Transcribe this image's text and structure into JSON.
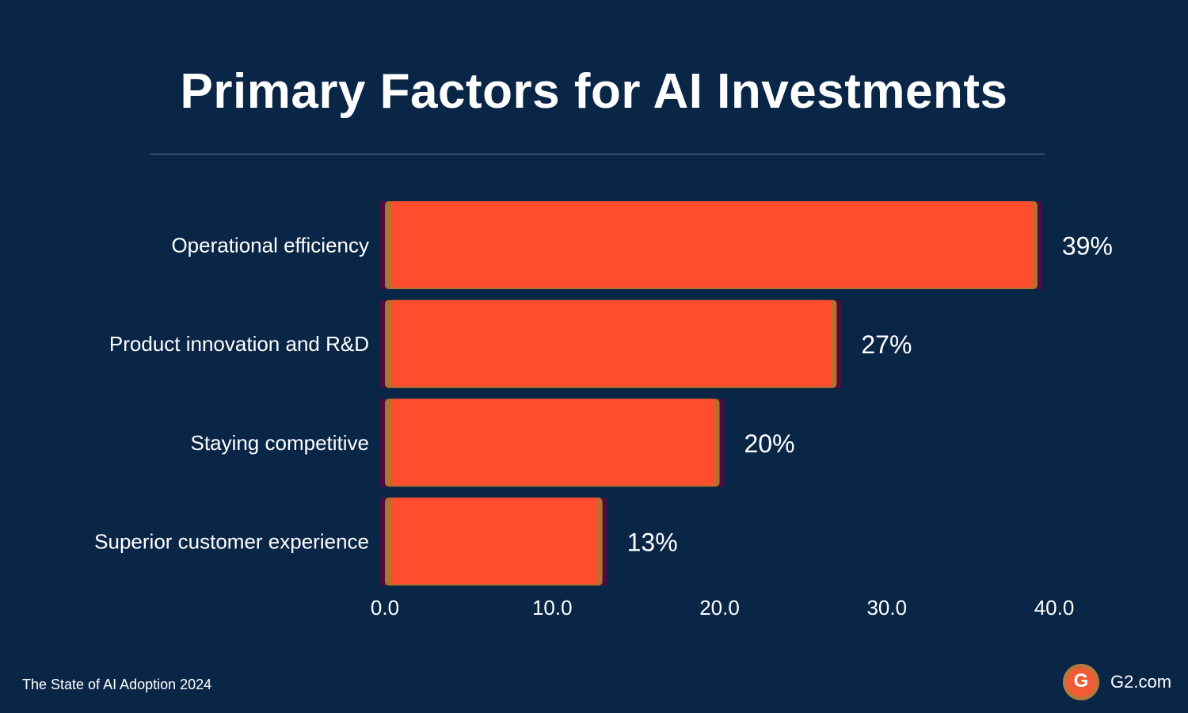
{
  "chart_data": {
    "type": "bar",
    "orientation": "horizontal",
    "title": "Primary Factors for AI Investments",
    "categories": [
      "Operational efficiency",
      "Product innovation and R&D",
      "Staying competitive",
      "Superior customer experience"
    ],
    "values": [
      39,
      27,
      20,
      13
    ],
    "value_labels": [
      "39%",
      "27%",
      "20%",
      "13%"
    ],
    "xlim": [
      0,
      40
    ],
    "xticks": [
      "0.0",
      "10.0",
      "20.0",
      "30.0",
      "40.0"
    ],
    "xlabel": "",
    "ylabel": "",
    "grid": false,
    "bar_color": "#ff4d2e"
  },
  "footer": {
    "source": "The State of AI Adoption 2024",
    "brand": "G2.com",
    "logo_text": "G"
  },
  "colors": {
    "background": "#0a2647",
    "text": "#ffffff"
  }
}
